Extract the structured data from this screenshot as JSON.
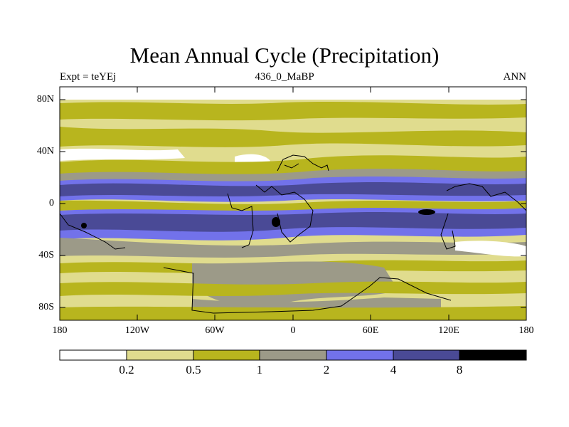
{
  "title": "Mean Annual Cycle (Precipitation)",
  "subtitle_left": "Expt = teYEj",
  "subtitle_center": "436_0_MaBP",
  "subtitle_right": "ANN",
  "map": {
    "lon_range": [
      -180,
      180
    ],
    "lat_range": [
      -90,
      90
    ],
    "y_ticks": [
      "80N",
      "40N",
      "0",
      "40S",
      "80S"
    ],
    "x_ticks": [
      "180",
      "120W",
      "60W",
      "0",
      "60E",
      "120E",
      "180"
    ]
  },
  "colorbar": {
    "levels": [
      "0.2",
      "0.5",
      "1",
      "2",
      "4",
      "8"
    ],
    "colors": [
      "#ffffff",
      "#e0dc8e",
      "#b8b51e",
      "#9c9a88",
      "#7272ea",
      "#4a4a96",
      "#000000"
    ]
  }
}
